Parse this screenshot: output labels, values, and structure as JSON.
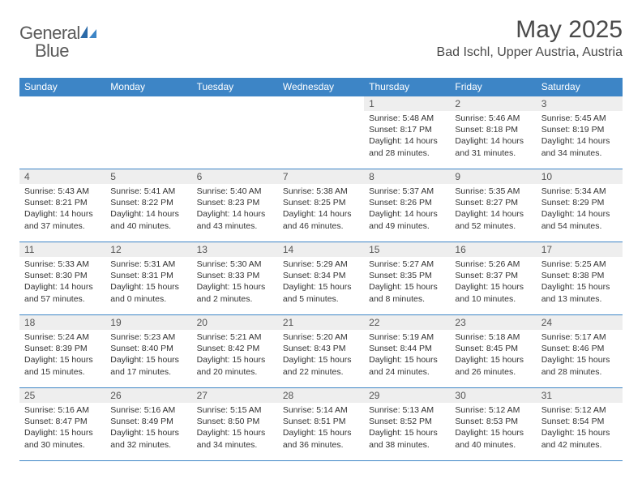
{
  "brand": {
    "part1": "General",
    "part2": "Blue"
  },
  "title": "May 2025",
  "location": "Bad Ischl, Upper Austria, Austria",
  "colors": {
    "header_bg": "#3d85c6",
    "header_text": "#ffffff",
    "daynum_bg": "#eeeeee",
    "border": "#3d85c6",
    "body_text": "#333333"
  },
  "weekdays": [
    "Sunday",
    "Monday",
    "Tuesday",
    "Wednesday",
    "Thursday",
    "Friday",
    "Saturday"
  ],
  "weeks": [
    [
      null,
      null,
      null,
      null,
      {
        "n": "1",
        "sr": "Sunrise: 5:48 AM",
        "ss": "Sunset: 8:17 PM",
        "d1": "Daylight: 14 hours",
        "d2": "and 28 minutes."
      },
      {
        "n": "2",
        "sr": "Sunrise: 5:46 AM",
        "ss": "Sunset: 8:18 PM",
        "d1": "Daylight: 14 hours",
        "d2": "and 31 minutes."
      },
      {
        "n": "3",
        "sr": "Sunrise: 5:45 AM",
        "ss": "Sunset: 8:19 PM",
        "d1": "Daylight: 14 hours",
        "d2": "and 34 minutes."
      }
    ],
    [
      {
        "n": "4",
        "sr": "Sunrise: 5:43 AM",
        "ss": "Sunset: 8:21 PM",
        "d1": "Daylight: 14 hours",
        "d2": "and 37 minutes."
      },
      {
        "n": "5",
        "sr": "Sunrise: 5:41 AM",
        "ss": "Sunset: 8:22 PM",
        "d1": "Daylight: 14 hours",
        "d2": "and 40 minutes."
      },
      {
        "n": "6",
        "sr": "Sunrise: 5:40 AM",
        "ss": "Sunset: 8:23 PM",
        "d1": "Daylight: 14 hours",
        "d2": "and 43 minutes."
      },
      {
        "n": "7",
        "sr": "Sunrise: 5:38 AM",
        "ss": "Sunset: 8:25 PM",
        "d1": "Daylight: 14 hours",
        "d2": "and 46 minutes."
      },
      {
        "n": "8",
        "sr": "Sunrise: 5:37 AM",
        "ss": "Sunset: 8:26 PM",
        "d1": "Daylight: 14 hours",
        "d2": "and 49 minutes."
      },
      {
        "n": "9",
        "sr": "Sunrise: 5:35 AM",
        "ss": "Sunset: 8:27 PM",
        "d1": "Daylight: 14 hours",
        "d2": "and 52 minutes."
      },
      {
        "n": "10",
        "sr": "Sunrise: 5:34 AM",
        "ss": "Sunset: 8:29 PM",
        "d1": "Daylight: 14 hours",
        "d2": "and 54 minutes."
      }
    ],
    [
      {
        "n": "11",
        "sr": "Sunrise: 5:33 AM",
        "ss": "Sunset: 8:30 PM",
        "d1": "Daylight: 14 hours",
        "d2": "and 57 minutes."
      },
      {
        "n": "12",
        "sr": "Sunrise: 5:31 AM",
        "ss": "Sunset: 8:31 PM",
        "d1": "Daylight: 15 hours",
        "d2": "and 0 minutes."
      },
      {
        "n": "13",
        "sr": "Sunrise: 5:30 AM",
        "ss": "Sunset: 8:33 PM",
        "d1": "Daylight: 15 hours",
        "d2": "and 2 minutes."
      },
      {
        "n": "14",
        "sr": "Sunrise: 5:29 AM",
        "ss": "Sunset: 8:34 PM",
        "d1": "Daylight: 15 hours",
        "d2": "and 5 minutes."
      },
      {
        "n": "15",
        "sr": "Sunrise: 5:27 AM",
        "ss": "Sunset: 8:35 PM",
        "d1": "Daylight: 15 hours",
        "d2": "and 8 minutes."
      },
      {
        "n": "16",
        "sr": "Sunrise: 5:26 AM",
        "ss": "Sunset: 8:37 PM",
        "d1": "Daylight: 15 hours",
        "d2": "and 10 minutes."
      },
      {
        "n": "17",
        "sr": "Sunrise: 5:25 AM",
        "ss": "Sunset: 8:38 PM",
        "d1": "Daylight: 15 hours",
        "d2": "and 13 minutes."
      }
    ],
    [
      {
        "n": "18",
        "sr": "Sunrise: 5:24 AM",
        "ss": "Sunset: 8:39 PM",
        "d1": "Daylight: 15 hours",
        "d2": "and 15 minutes."
      },
      {
        "n": "19",
        "sr": "Sunrise: 5:23 AM",
        "ss": "Sunset: 8:40 PM",
        "d1": "Daylight: 15 hours",
        "d2": "and 17 minutes."
      },
      {
        "n": "20",
        "sr": "Sunrise: 5:21 AM",
        "ss": "Sunset: 8:42 PM",
        "d1": "Daylight: 15 hours",
        "d2": "and 20 minutes."
      },
      {
        "n": "21",
        "sr": "Sunrise: 5:20 AM",
        "ss": "Sunset: 8:43 PM",
        "d1": "Daylight: 15 hours",
        "d2": "and 22 minutes."
      },
      {
        "n": "22",
        "sr": "Sunrise: 5:19 AM",
        "ss": "Sunset: 8:44 PM",
        "d1": "Daylight: 15 hours",
        "d2": "and 24 minutes."
      },
      {
        "n": "23",
        "sr": "Sunrise: 5:18 AM",
        "ss": "Sunset: 8:45 PM",
        "d1": "Daylight: 15 hours",
        "d2": "and 26 minutes."
      },
      {
        "n": "24",
        "sr": "Sunrise: 5:17 AM",
        "ss": "Sunset: 8:46 PM",
        "d1": "Daylight: 15 hours",
        "d2": "and 28 minutes."
      }
    ],
    [
      {
        "n": "25",
        "sr": "Sunrise: 5:16 AM",
        "ss": "Sunset: 8:47 PM",
        "d1": "Daylight: 15 hours",
        "d2": "and 30 minutes."
      },
      {
        "n": "26",
        "sr": "Sunrise: 5:16 AM",
        "ss": "Sunset: 8:49 PM",
        "d1": "Daylight: 15 hours",
        "d2": "and 32 minutes."
      },
      {
        "n": "27",
        "sr": "Sunrise: 5:15 AM",
        "ss": "Sunset: 8:50 PM",
        "d1": "Daylight: 15 hours",
        "d2": "and 34 minutes."
      },
      {
        "n": "28",
        "sr": "Sunrise: 5:14 AM",
        "ss": "Sunset: 8:51 PM",
        "d1": "Daylight: 15 hours",
        "d2": "and 36 minutes."
      },
      {
        "n": "29",
        "sr": "Sunrise: 5:13 AM",
        "ss": "Sunset: 8:52 PM",
        "d1": "Daylight: 15 hours",
        "d2": "and 38 minutes."
      },
      {
        "n": "30",
        "sr": "Sunrise: 5:12 AM",
        "ss": "Sunset: 8:53 PM",
        "d1": "Daylight: 15 hours",
        "d2": "and 40 minutes."
      },
      {
        "n": "31",
        "sr": "Sunrise: 5:12 AM",
        "ss": "Sunset: 8:54 PM",
        "d1": "Daylight: 15 hours",
        "d2": "and 42 minutes."
      }
    ]
  ]
}
